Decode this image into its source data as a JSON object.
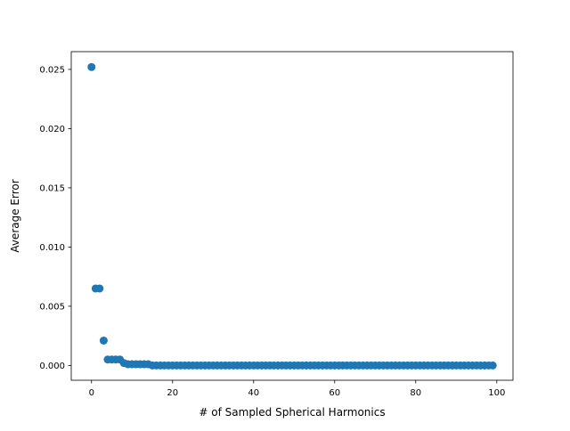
{
  "chart_data": {
    "type": "scatter",
    "title": "",
    "xlabel": "# of Sampled Spherical Harmonics",
    "ylabel": "Average Error",
    "xlim": [
      -5,
      104
    ],
    "ylim": [
      -0.00125,
      0.0265
    ],
    "xticks": [
      0,
      20,
      40,
      60,
      80,
      100
    ],
    "xtick_labels": [
      "0",
      "20",
      "40",
      "60",
      "80",
      "100"
    ],
    "yticks": [
      0.0,
      0.005,
      0.01,
      0.015,
      0.02,
      0.025
    ],
    "ytick_labels": [
      "0.000",
      "0.005",
      "0.010",
      "0.015",
      "0.020",
      "0.025"
    ],
    "grid": false,
    "legend": "none",
    "marker_color": "#1f77b4",
    "series": [
      {
        "x": [
          0,
          1,
          2,
          3,
          4,
          5,
          6,
          7,
          8,
          9,
          10,
          11,
          12,
          13,
          14,
          15,
          16,
          17,
          18,
          19,
          20,
          21,
          22,
          23,
          24,
          25,
          26,
          27,
          28,
          29,
          30,
          31,
          32,
          33,
          34,
          35,
          36,
          37,
          38,
          39,
          40,
          41,
          42,
          43,
          44,
          45,
          46,
          47,
          48,
          49,
          50,
          51,
          52,
          53,
          54,
          55,
          56,
          57,
          58,
          59,
          60,
          61,
          62,
          63,
          64,
          65,
          66,
          67,
          68,
          69,
          70,
          71,
          72,
          73,
          74,
          75,
          76,
          77,
          78,
          79,
          80,
          81,
          82,
          83,
          84,
          85,
          86,
          87,
          88,
          89,
          90,
          91,
          92,
          93,
          94,
          95,
          96,
          97,
          98,
          99
        ],
        "y": [
          0.0252,
          0.0065,
          0.0065,
          0.0021,
          0.0005,
          0.0005,
          0.0005,
          0.0005,
          0.0002,
          0.0001,
          0.0001,
          0.0001,
          0.0001,
          0.0001,
          0.0001,
          0,
          0,
          0,
          0,
          0,
          0,
          0,
          0,
          0,
          0,
          0,
          0,
          0,
          0,
          0,
          0,
          0,
          0,
          0,
          0,
          0,
          0,
          0,
          0,
          0,
          0,
          0,
          0,
          0,
          0,
          0,
          0,
          0,
          0,
          0,
          0,
          0,
          0,
          0,
          0,
          0,
          0,
          0,
          0,
          0,
          0,
          0,
          0,
          0,
          0,
          0,
          0,
          0,
          0,
          0,
          0,
          0,
          0,
          0,
          0,
          0,
          0,
          0,
          0,
          0,
          0,
          0,
          0,
          0,
          0,
          0,
          0,
          0,
          0,
          0,
          0,
          0,
          0,
          0,
          0,
          0,
          0,
          0,
          0,
          0
        ]
      }
    ]
  }
}
